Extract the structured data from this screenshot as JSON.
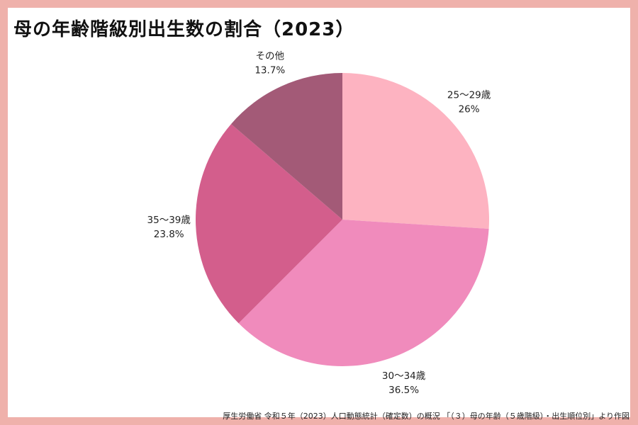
{
  "title": "母の年齢階級別出生数の割合（2023）",
  "source": "厚生労働省 令和５年（2023）人口動態統計（確定数）の概況 「（３）母の年齢（５歳階級）・出生順位別」より作図",
  "chart_data": {
    "type": "pie",
    "title": "母の年齢階級別出生数の割合（2023）",
    "start": "top",
    "direction": "clockwise",
    "slices": [
      {
        "label": "25～29歳",
        "value": 26,
        "display": "26%",
        "color": "#fdb3c1"
      },
      {
        "label": "30～34歳",
        "value": 36.5,
        "display": "36.5%",
        "color": "#f08bbc"
      },
      {
        "label": "35～39歳",
        "value": 23.8,
        "display": "23.8%",
        "color": "#d35e8c"
      },
      {
        "label": "その他",
        "value": 13.7,
        "display": "13.7%",
        "color": "#a35a77"
      }
    ]
  }
}
